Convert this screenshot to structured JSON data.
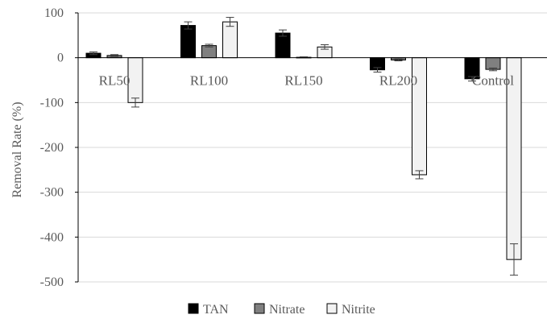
{
  "chart_data": {
    "type": "bar",
    "title": "",
    "xlabel": "",
    "ylabel": "Removal Rate (%)",
    "ylim": [
      -500,
      100
    ],
    "yticks": [
      100,
      0,
      -100,
      -200,
      -300,
      -400,
      -500
    ],
    "grid": true,
    "legend_position": "bottom",
    "categories": [
      "RL50",
      "RL100",
      "RL150",
      "RL200",
      "Control"
    ],
    "series": [
      {
        "name": "TAN",
        "color": "#000000",
        "values": [
          10,
          72,
          55,
          -27,
          -47
        ],
        "errors": [
          3,
          8,
          7,
          5,
          5
        ]
      },
      {
        "name": "Nitrate",
        "color": "#808080",
        "values": [
          5,
          27,
          1,
          -5,
          -26
        ],
        "errors": [
          2,
          3,
          1,
          2,
          3
        ]
      },
      {
        "name": "Nitrite",
        "color": "#f2f2f2",
        "values": [
          -100,
          80,
          24,
          -261,
          -450
        ],
        "errors": [
          10,
          10,
          5,
          9,
          35
        ]
      }
    ]
  }
}
